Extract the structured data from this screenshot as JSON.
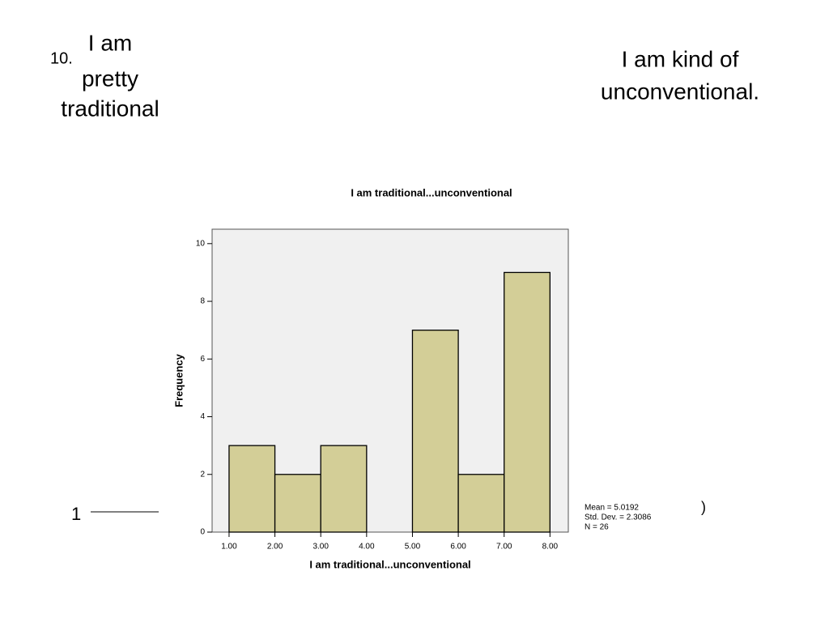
{
  "slide": {
    "number": "10.",
    "left_label": [
      "I am",
      "pretty",
      "traditional"
    ],
    "right_label": [
      "I am kind of",
      "unconventional."
    ],
    "scale_start": "1",
    "scale_end": ")"
  },
  "chart_data": {
    "type": "histogram",
    "title": "I am traditional...unconventional",
    "x_label": "I am traditional...unconventional",
    "y_label": "Frequency",
    "bins": [
      1,
      2,
      3,
      4,
      5,
      6,
      7,
      8
    ],
    "values": [
      3,
      2,
      3,
      0,
      7,
      2,
      9
    ],
    "color": "#d3ce97",
    "xlim": [
      0.63,
      8.4
    ],
    "ylim": [
      0,
      10.5
    ],
    "xticks": [
      {
        "value": 1,
        "label": "1.00"
      },
      {
        "value": 2,
        "label": "2.00"
      },
      {
        "value": 3,
        "label": "3.00"
      },
      {
        "value": 4,
        "label": "4.00"
      },
      {
        "value": 5,
        "label": "5.00"
      },
      {
        "value": 6,
        "label": "6.00"
      },
      {
        "value": 7,
        "label": "7.00"
      },
      {
        "value": 8,
        "label": "8.00"
      }
    ],
    "yticks": [
      0,
      2,
      4,
      6,
      8,
      10
    ],
    "stats": [
      "Mean = 5.0192",
      "Std. Dev. = 2.3086",
      "N = 26"
    ]
  }
}
